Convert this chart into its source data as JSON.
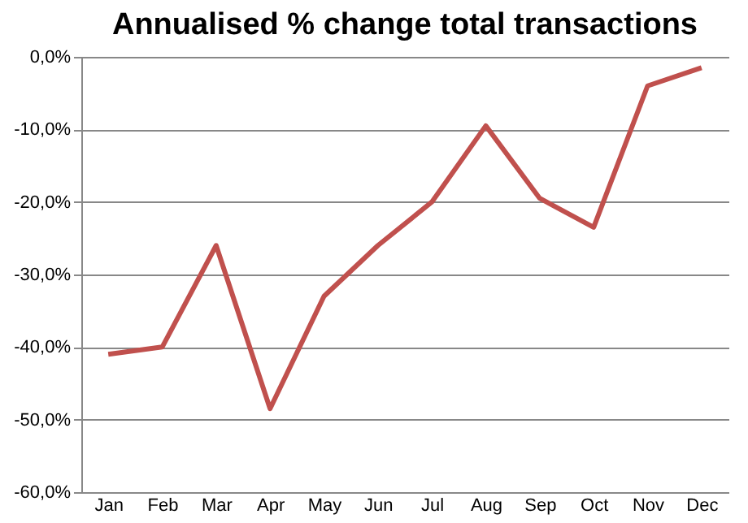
{
  "chart_data": {
    "type": "line",
    "title": "Annualised % change total transactions",
    "categories": [
      "Jan",
      "Feb",
      "Mar",
      "Apr",
      "May",
      "Jun",
      "Jul",
      "Aug",
      "Sep",
      "Oct",
      "Nov",
      "Dec"
    ],
    "series": [
      {
        "color": "#c0504d",
        "values": [
          -41,
          -40,
          -26,
          -48.5,
          -33,
          -26,
          -20,
          -9.5,
          -19.5,
          -23.5,
          -4,
          -1.5
        ]
      }
    ],
    "ylim": [
      -60,
      0
    ],
    "yticks": [
      {
        "value": -60,
        "label": "-60,0%"
      },
      {
        "value": -50,
        "label": "-50,0%"
      },
      {
        "value": -40,
        "label": "-40,0%"
      },
      {
        "value": -30,
        "label": "-30,0%"
      },
      {
        "value": -20,
        "label": "-20,0%"
      },
      {
        "value": -10,
        "label": "-10,0%"
      },
      {
        "value": 0,
        "label": "0,0%"
      }
    ],
    "grid": "y",
    "marker": "none",
    "line_style": "solid"
  }
}
